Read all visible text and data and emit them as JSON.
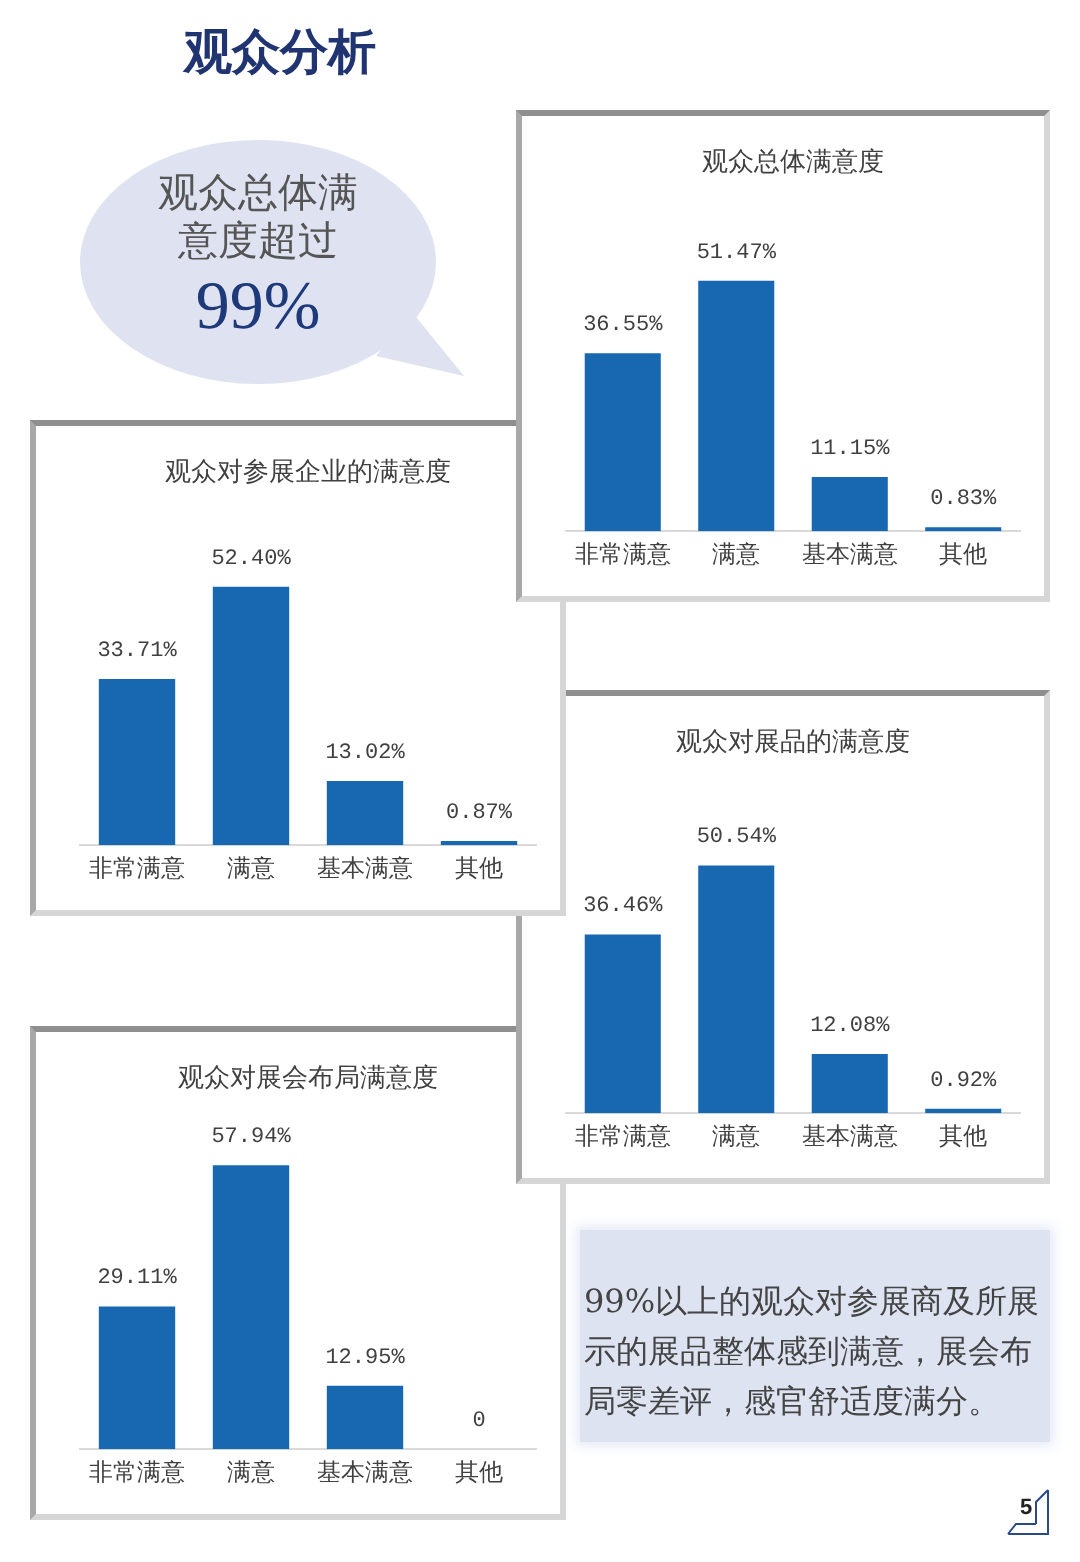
{
  "chart_data": [
    {
      "type": "other",
      "title": "观众分析",
      "annotations": [
        "观众总体满意度超过",
        "99%"
      ]
    },
    {
      "type": "bar",
      "title": "观众总体满意度",
      "categories": [
        "非常满意",
        "满意",
        "基本满意",
        "其他"
      ],
      "values": [
        36.55,
        51.47,
        11.15,
        0.83
      ],
      "value_labels": [
        "36.55%",
        "51.47%",
        "11.15%",
        "0.83%"
      ],
      "color": "#1767b1",
      "tick_labels": "x"
    },
    {
      "type": "bar",
      "title": "观众对参展企业的满意度",
      "categories": [
        "非常满意",
        "满意",
        "基本满意",
        "其他"
      ],
      "values": [
        33.71,
        52.4,
        13.02,
        0.87
      ],
      "value_labels": [
        "33.71%",
        "52.40%",
        "13.02%",
        "0.87%"
      ],
      "color": "#1767b1",
      "tick_labels": "x"
    },
    {
      "type": "bar",
      "title": "观众对展品的满意度",
      "categories": [
        "非常满意",
        "满意",
        "基本满意",
        "其他"
      ],
      "values": [
        36.46,
        50.54,
        12.08,
        0.92
      ],
      "value_labels": [
        "36.46%",
        "50.54%",
        "12.08%",
        "0.92%"
      ],
      "color": "#1767b1",
      "tick_labels": "x"
    },
    {
      "type": "bar",
      "title": "观众对展会布局满意度",
      "categories": [
        "非常满意",
        "满意",
        "基本满意",
        "其他"
      ],
      "values": [
        29.11,
        57.94,
        12.95,
        0
      ],
      "value_labels": [
        "29.11%",
        "57.94%",
        "12.95%",
        "0"
      ],
      "color": "#1767b1",
      "tick_labels": "x"
    },
    {
      "type": "other",
      "annotations": [
        "99%以上的观众对参展商及所展示的展品整体感到满意，展会布局零差评，感官舒适度满分。",
        "5"
      ]
    }
  ]
}
